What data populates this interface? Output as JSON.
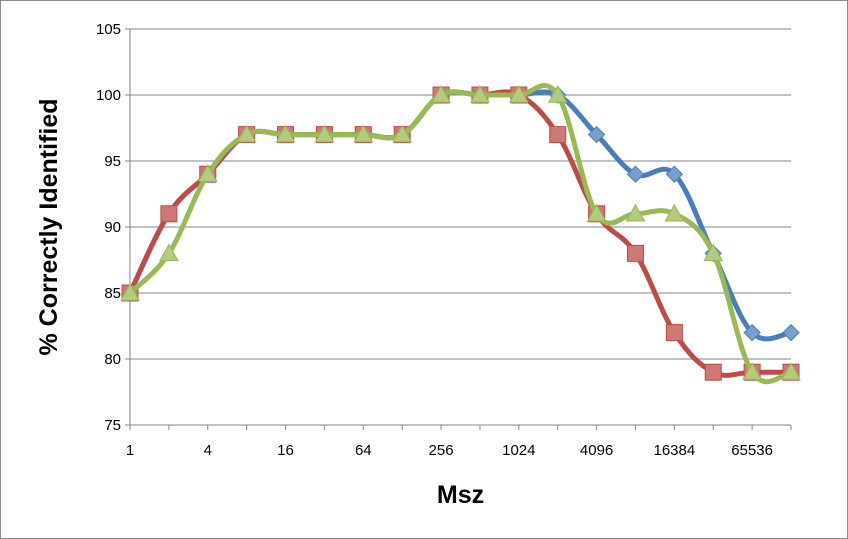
{
  "chart_data": {
    "type": "line",
    "title": "",
    "xlabel": "Msz",
    "ylabel": "% Correctly Identified",
    "x": [
      1,
      2,
      4,
      8,
      16,
      32,
      64,
      128,
      256,
      512,
      1024,
      2048,
      4096,
      8192,
      16384,
      32768,
      65536,
      131072
    ],
    "x_scale": "log2",
    "xticks": [
      "1",
      "4",
      "16",
      "64",
      "256",
      "1024",
      "4096",
      "16384",
      "65536"
    ],
    "yticks": [
      75,
      80,
      85,
      90,
      95,
      100,
      105
    ],
    "ylim": [
      75,
      105
    ],
    "grid": "horizontal",
    "legend": "none",
    "series": [
      {
        "color": "#4a7ebb",
        "marker": "diamond",
        "values": [
          85,
          91,
          94,
          97,
          97,
          97,
          97,
          97,
          100,
          100,
          100,
          100,
          97,
          94,
          94,
          88,
          82,
          82
        ]
      },
      {
        "color": "#be4b48",
        "marker": "square",
        "values": [
          85,
          91,
          94,
          97,
          97,
          97,
          97,
          97,
          100,
          100,
          100,
          97,
          91,
          88,
          82,
          79,
          79,
          79
        ]
      },
      {
        "color": "#98b954",
        "marker": "triangle",
        "values": [
          85,
          88,
          94,
          97,
          97,
          97,
          97,
          97,
          100,
          100,
          100,
          100,
          91,
          91,
          91,
          88,
          79,
          79
        ]
      }
    ]
  }
}
